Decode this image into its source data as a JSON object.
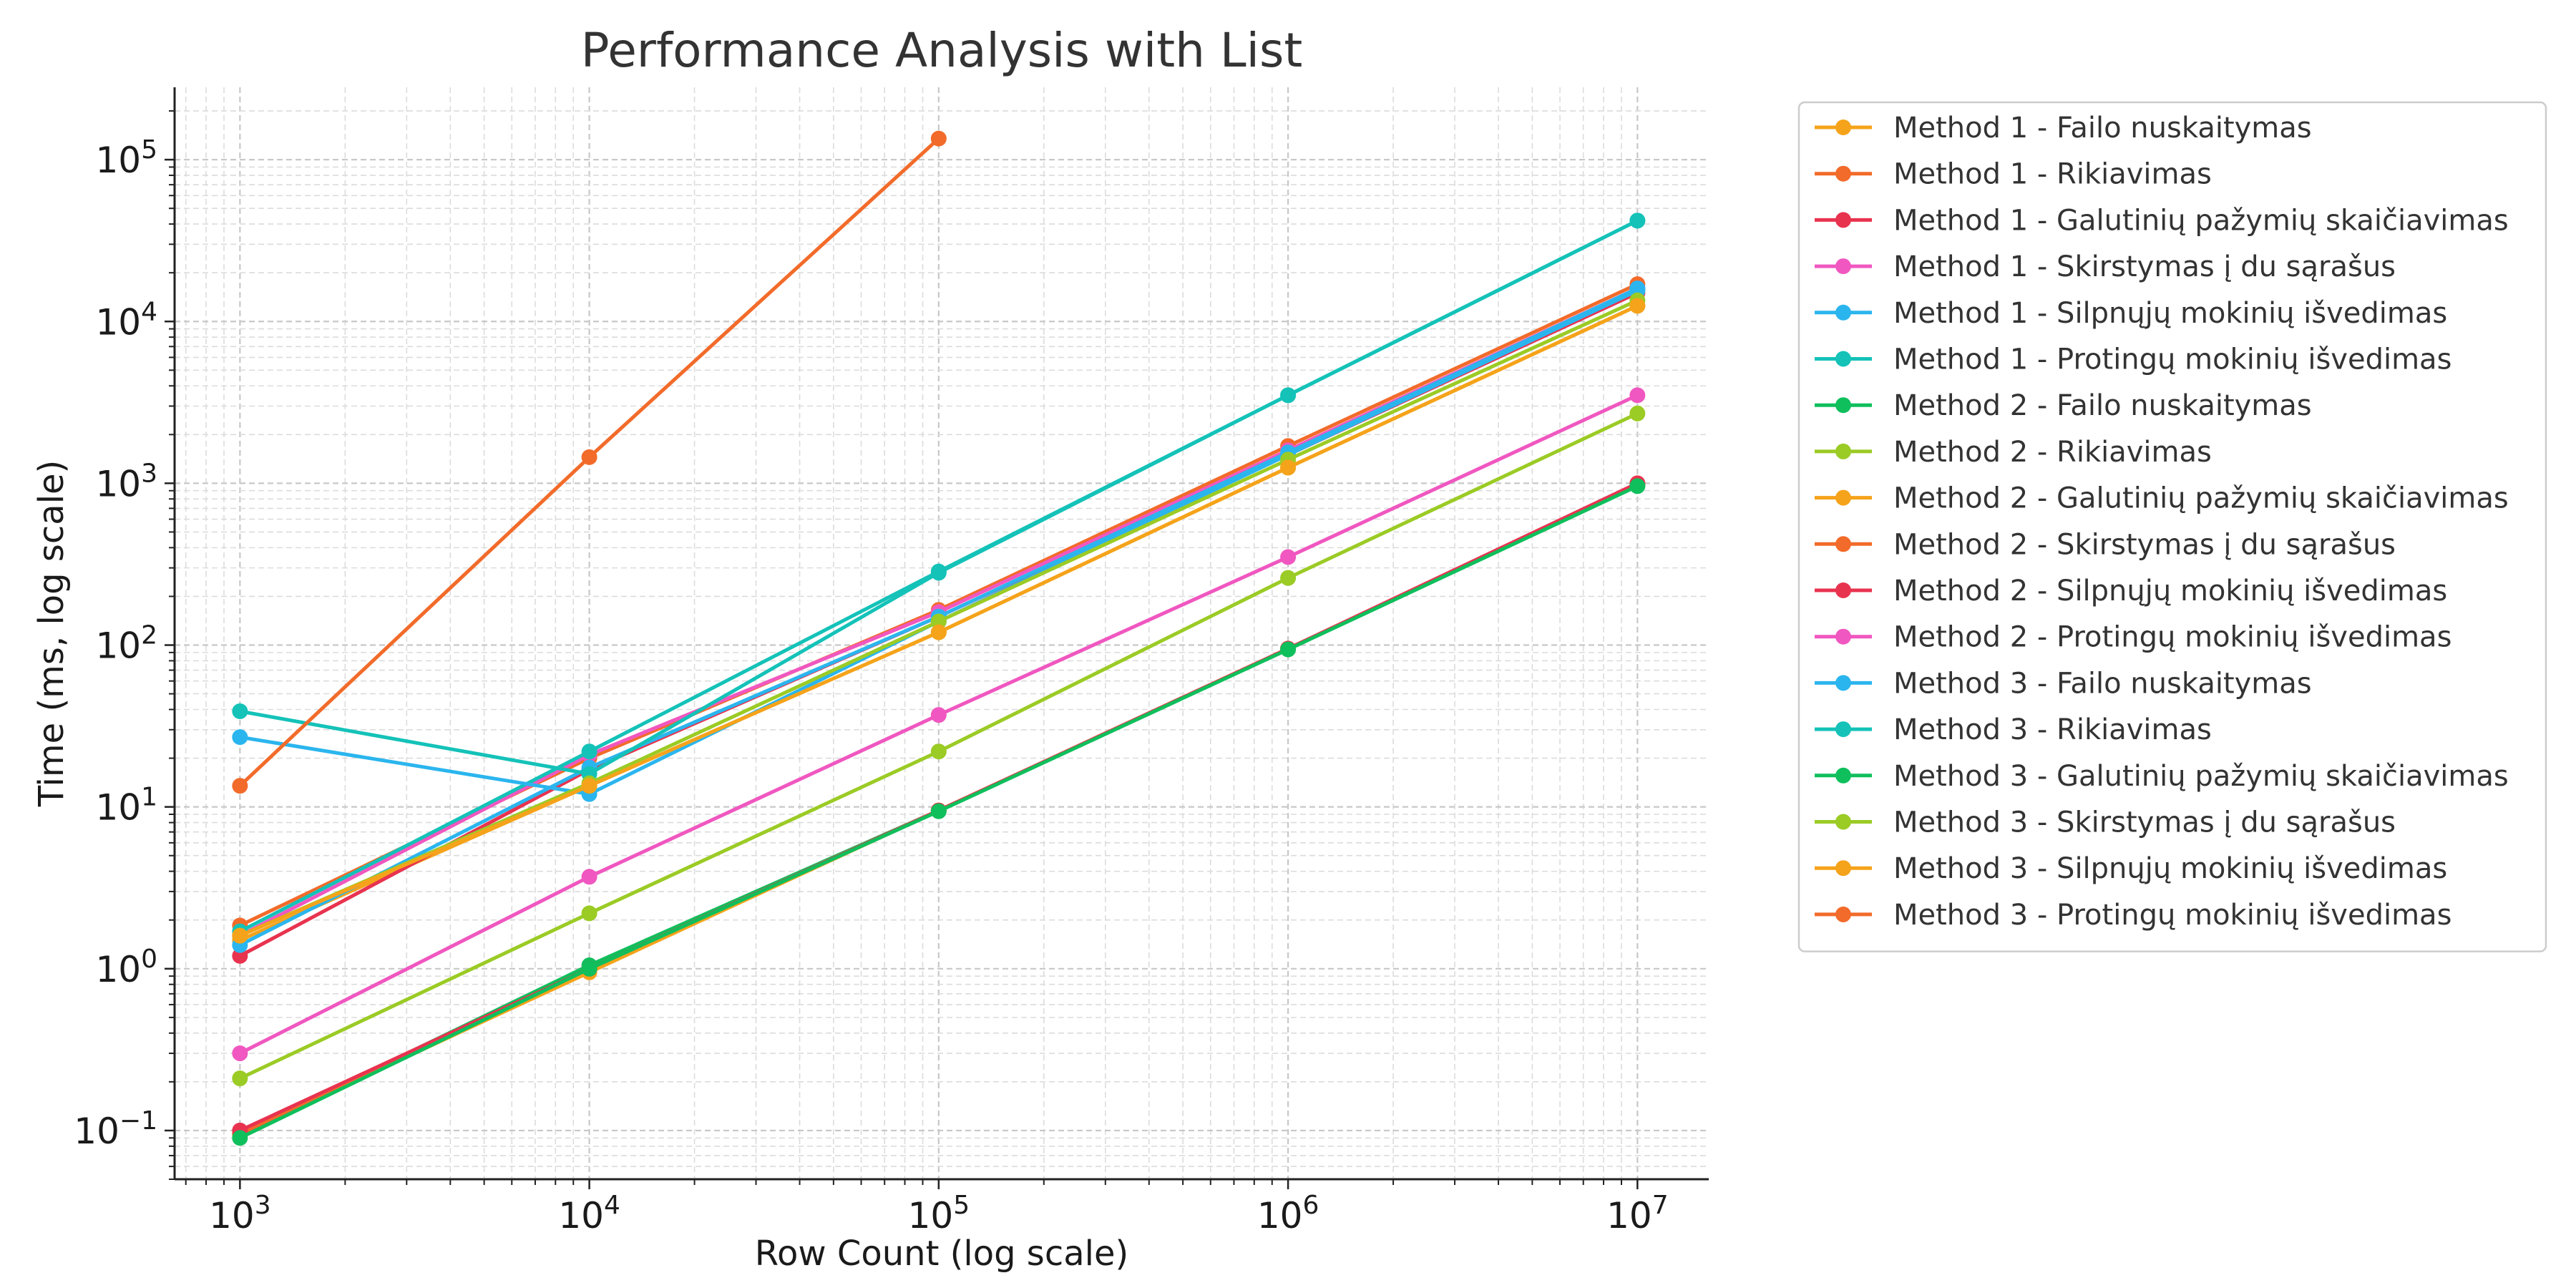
{
  "chart_data": {
    "type": "line",
    "title": "Performance Analysis with List",
    "xlabel": "Row Count (log scale)",
    "ylabel": "Time (ms, log scale)",
    "x_scale": "log",
    "y_scale": "log",
    "x": [
      1000,
      10000,
      100000,
      1000000,
      10000000
    ],
    "x_ticks": [
      {
        "value": 1000,
        "base": "10",
        "exp": "3"
      },
      {
        "value": 10000,
        "base": "10",
        "exp": "4"
      },
      {
        "value": 100000,
        "base": "10",
        "exp": "5"
      },
      {
        "value": 1000000,
        "base": "10",
        "exp": "6"
      },
      {
        "value": 10000000,
        "base": "10",
        "exp": "7"
      }
    ],
    "y_ticks": [
      {
        "value": 0.1,
        "base": "10",
        "exp": "−1"
      },
      {
        "value": 1,
        "base": "10",
        "exp": "0"
      },
      {
        "value": 10,
        "base": "10",
        "exp": "1"
      },
      {
        "value": 100,
        "base": "10",
        "exp": "2"
      },
      {
        "value": 1000,
        "base": "10",
        "exp": "3"
      },
      {
        "value": 10000,
        "base": "10",
        "exp": "4"
      },
      {
        "value": 100000,
        "base": "10",
        "exp": "5"
      }
    ],
    "xlim": [
      650,
      16000000
    ],
    "ylim": [
      0.05,
      280000
    ],
    "grid": true,
    "legend_position": "outside-right",
    "series": [
      {
        "name": "Method 1 - Failo nuskaitymas",
        "color": "#f5a31a",
        "values": [
          1.5,
          13.5,
          120,
          1250,
          12500
        ]
      },
      {
        "name": "Method 1 - Rikiavimas",
        "color": "#f26b2a",
        "values": [
          1.85,
          20,
          165,
          1700,
          17000
        ]
      },
      {
        "name": "Method 1 - Galutinių pažymių skaičiavimas",
        "color": "#e8334f",
        "values": [
          1.2,
          17,
          150,
          1500,
          15000
        ]
      },
      {
        "name": "Method 1 - Skirstymas į du sąrašus",
        "color": "#f057c0",
        "values": [
          1.6,
          21,
          160,
          1600,
          16000
        ]
      },
      {
        "name": "Method 1 - Silpnųjų mokinių išvedimas",
        "color": "#2bb5ee",
        "values": [
          1.4,
          17.5,
          150,
          1550,
          16000
        ]
      },
      {
        "name": "Method 1 - Protingų mokinių išvedimas",
        "color": "#14c2b8",
        "values": [
          1.7,
          22,
          285,
          3500,
          42000
        ]
      },
      {
        "name": "Method 2 - Failo nuskaitymas",
        "color": "#0fbf5c",
        "values": [
          0.095,
          1.05,
          9.5,
          95,
          970
        ]
      },
      {
        "name": "Method 2 - Rikiavimas",
        "color": "#9bcb25",
        "values": [
          0.21,
          2.2,
          22,
          260,
          2700
        ]
      },
      {
        "name": "Method 2 - Galutinių pažymių skaičiavimas",
        "color": "#f5a31a",
        "values": [
          0.095,
          0.95,
          9.5,
          95,
          980
        ]
      },
      {
        "name": "Method 2 - Skirstymas į du sąrašus",
        "color": "#f26b2a",
        "values": [
          0.095,
          1.0,
          9.5,
          95,
          990
        ]
      },
      {
        "name": "Method 2 - Silpnųjų mokinių išvedimas",
        "color": "#e8334f",
        "values": [
          0.1,
          1.0,
          9.5,
          95,
          1000
        ]
      },
      {
        "name": "Method 2 - Protingų mokinių išvedimas",
        "color": "#f057c0",
        "values": [
          0.3,
          3.7,
          37,
          350,
          3500
        ]
      },
      {
        "name": "Method 3 - Failo nuskaitymas",
        "color": "#2bb5ee",
        "values": [
          27,
          12,
          140,
          1500,
          15500
        ]
      },
      {
        "name": "Method 3 - Rikiavimas",
        "color": "#14c2b8",
        "values": [
          39,
          16,
          280,
          3500,
          42000
        ]
      },
      {
        "name": "Method 3 - Galutinių pažymių skaičiavimas",
        "color": "#0fbf5c",
        "values": [
          0.09,
          1.0,
          9.4,
          94,
          960
        ]
      },
      {
        "name": "Method 3 - Skirstymas į du sąrašus",
        "color": "#9bcb25",
        "values": [
          1.6,
          14,
          140,
          1400,
          13500
        ]
      },
      {
        "name": "Method 3 - Silpnųjų mokinių išvedimas",
        "color": "#f5a31a",
        "values": [
          1.6,
          13.5,
          120,
          1250,
          12500
        ]
      },
      {
        "name": "Method 3 - Protingų mokinių išvedimas",
        "color": "#f26b2a",
        "values": [
          13.5,
          1450,
          135000,
          null,
          null
        ]
      }
    ]
  }
}
